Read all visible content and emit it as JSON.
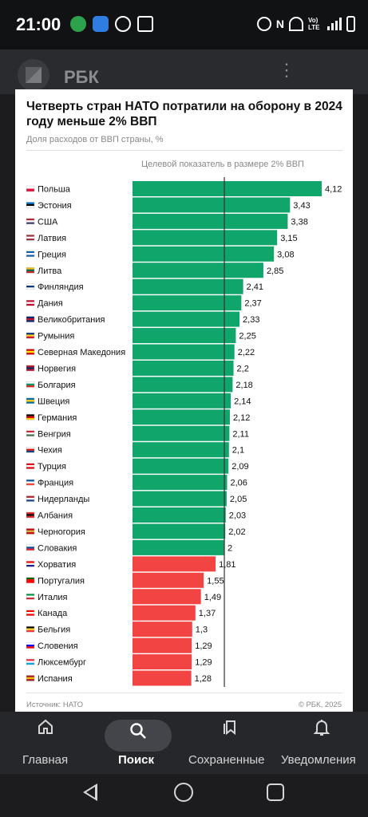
{
  "status_bar": {
    "time": "21:00",
    "network_label": "Vo) LTE"
  },
  "app": {
    "title": "РБК"
  },
  "chart_data": {
    "type": "bar",
    "orientation": "horizontal",
    "title": "Четверть стран НАТО потратили на оборону в 2024 году меньше 2% ВВП",
    "subtitle": "Доля расходов от ВВП страны, %",
    "reference_line": {
      "value": 2,
      "label": "Целевой показатель в размере 2% ВВП"
    },
    "xlim": [
      0,
      4.12
    ],
    "colors": {
      "above_target": "#10a66b",
      "below_target": "#f24443",
      "reference_line": "#333333"
    },
    "categories": [
      "Польша",
      "Эстония",
      "США",
      "Латвия",
      "Греция",
      "Литва",
      "Финляндия",
      "Дания",
      "Великобритания",
      "Румыния",
      "Северная Македония",
      "Норвегия",
      "Болгария",
      "Швеция",
      "Германия",
      "Венгрия",
      "Чехия",
      "Турция",
      "Франция",
      "Нидерланды",
      "Албания",
      "Черногория",
      "Словакия",
      "Хорватия",
      "Португалия",
      "Италия",
      "Канада",
      "Бельгия",
      "Словения",
      "Люксембург",
      "Испания"
    ],
    "values": [
      4.12,
      3.43,
      3.38,
      3.15,
      3.08,
      2.85,
      2.41,
      2.37,
      2.33,
      2.25,
      2.22,
      2.2,
      2.18,
      2.14,
      2.12,
      2.11,
      2.1,
      2.09,
      2.06,
      2.05,
      2.03,
      2.02,
      2,
      1.81,
      1.55,
      1.49,
      1.37,
      1.3,
      1.29,
      1.29,
      1.28
    ],
    "value_labels": [
      "4,12",
      "3,43",
      "3,38",
      "3,15",
      "3,08",
      "2,85",
      "2,41",
      "2,37",
      "2,33",
      "2,25",
      "2,22",
      "2,2",
      "2,18",
      "2,14",
      "2,12",
      "2,11",
      "2,1",
      "2,09",
      "2,06",
      "2,05",
      "2,03",
      "2,02",
      "2",
      "1,81",
      "1,55",
      "1,49",
      "1,37",
      "1,3",
      "1,29",
      "1,29",
      "1,28"
    ],
    "flag_colors": [
      [
        "#ffffff",
        "#dc143c"
      ],
      [
        "#0072ce",
        "#000000",
        "#ffffff"
      ],
      [
        "#b22234",
        "#ffffff",
        "#3c3b6e"
      ],
      [
        "#9e3039",
        "#ffffff",
        "#9e3039"
      ],
      [
        "#0d5eaf",
        "#ffffff",
        "#0d5eaf"
      ],
      [
        "#fdb913",
        "#006a44",
        "#c1272d"
      ],
      [
        "#ffffff",
        "#003580",
        "#ffffff"
      ],
      [
        "#c60c30",
        "#ffffff",
        "#c60c30"
      ],
      [
        "#012169",
        "#c8102e",
        "#012169"
      ],
      [
        "#002b7f",
        "#fcd116",
        "#ce1126"
      ],
      [
        "#d20000",
        "#ffe600",
        "#d20000"
      ],
      [
        "#ba0c2f",
        "#00205b",
        "#ba0c2f"
      ],
      [
        "#ffffff",
        "#00966e",
        "#d62612"
      ],
      [
        "#006aa7",
        "#fecc00",
        "#006aa7"
      ],
      [
        "#000000",
        "#dd0000",
        "#ffce00"
      ],
      [
        "#ce2939",
        "#ffffff",
        "#477050"
      ],
      [
        "#ffffff",
        "#d7141a",
        "#11457e"
      ],
      [
        "#e30a17",
        "#ffffff",
        "#e30a17"
      ],
      [
        "#0055a4",
        "#ffffff",
        "#ef4135"
      ],
      [
        "#ae1c28",
        "#ffffff",
        "#21468b"
      ],
      [
        "#e41e20",
        "#000000",
        "#e41e20"
      ],
      [
        "#c40308",
        "#d4af37",
        "#c40308"
      ],
      [
        "#ffffff",
        "#0b4ea2",
        "#ee1c25"
      ],
      [
        "#ff0000",
        "#ffffff",
        "#171796"
      ],
      [
        "#006600",
        "#ff0000",
        "#ff0000"
      ],
      [
        "#009246",
        "#ffffff",
        "#ce2b37"
      ],
      [
        "#ff0000",
        "#ffffff",
        "#ff0000"
      ],
      [
        "#000000",
        "#fdda24",
        "#ef3340"
      ],
      [
        "#ffffff",
        "#0000ff",
        "#ff0000"
      ],
      [
        "#ed2939",
        "#ffffff",
        "#00a1de"
      ],
      [
        "#aa151b",
        "#f1bf00",
        "#aa151b"
      ]
    ]
  },
  "footer": {
    "source": "Источник: НАТО",
    "copyright": "© РБК, 2025"
  },
  "bottom_nav": {
    "items": [
      {
        "label": "Главная",
        "icon": "home-icon"
      },
      {
        "label": "Поиск",
        "icon": "search-icon"
      },
      {
        "label": "Сохраненные",
        "icon": "bookmark-icon"
      },
      {
        "label": "Уведомления",
        "icon": "bell-icon"
      }
    ],
    "active": "Поиск"
  }
}
